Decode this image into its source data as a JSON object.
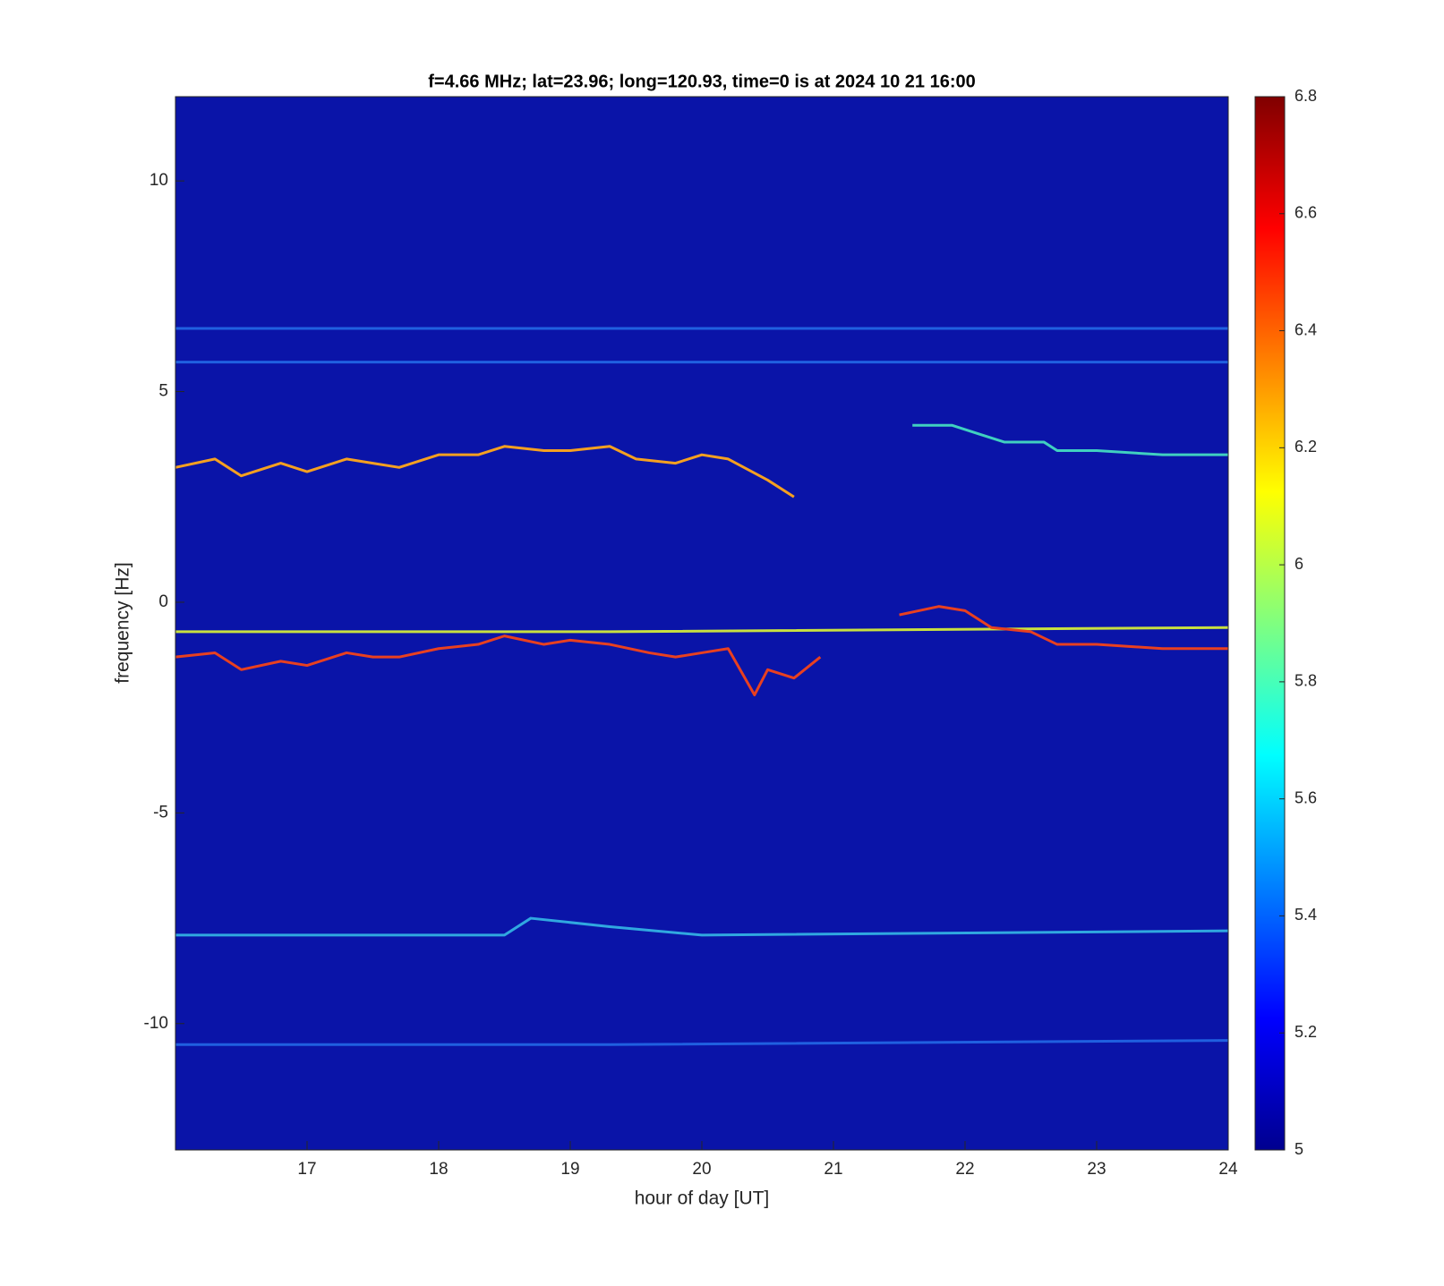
{
  "chart_data": {
    "type": "spectrogram",
    "title": "f=4.66 MHz;  lat=23.96; long=120.93, time=0 is at 2024 10 21 16:00",
    "x_label": "hour of day [UT]",
    "y_label": "frequency [Hz]",
    "xlim": [
      16,
      24
    ],
    "xticks": [
      17,
      18,
      19,
      20,
      21,
      22,
      23,
      24
    ],
    "ylim": [
      -13,
      12
    ],
    "yticks": [
      -10,
      -5,
      0,
      5,
      10
    ],
    "clim": [
      5,
      6.8
    ],
    "cticks": [
      5,
      5.2,
      5.4,
      5.6,
      5.8,
      6,
      6.2,
      6.4,
      6.6,
      6.8
    ],
    "traces": [
      {
        "color": "#f5a020",
        "x": [
          16.0,
          16.3,
          16.5,
          16.8,
          17.0,
          17.3,
          17.5,
          17.7,
          18.0,
          18.3,
          18.5,
          18.8,
          19.0,
          19.3,
          19.5,
          19.8,
          20.0,
          20.2,
          20.5,
          20.7
        ],
        "y": [
          3.2,
          3.4,
          3.0,
          3.3,
          3.1,
          3.4,
          3.3,
          3.2,
          3.5,
          3.5,
          3.7,
          3.6,
          3.6,
          3.7,
          3.4,
          3.3,
          3.5,
          3.4,
          2.9,
          2.5
        ]
      },
      {
        "color": "#e84020",
        "x": [
          16.0,
          16.3,
          16.5,
          16.8,
          17.0,
          17.3,
          17.5,
          17.7,
          18.0,
          18.3,
          18.5,
          18.8,
          19.0,
          19.3,
          19.6,
          19.8,
          20.0,
          20.2,
          20.4,
          20.5,
          20.7,
          20.9
        ],
        "y": [
          -1.3,
          -1.2,
          -1.6,
          -1.4,
          -1.5,
          -1.2,
          -1.3,
          -1.3,
          -1.1,
          -1.0,
          -0.8,
          -1.0,
          -0.9,
          -1.0,
          -1.2,
          -1.3,
          -1.2,
          -1.1,
          -2.2,
          -1.6,
          -1.8,
          -1.3
        ]
      },
      {
        "color": "#c8e040",
        "x": [
          16.0,
          19.3,
          24.0
        ],
        "y": [
          -0.7,
          -0.7,
          -0.6
        ]
      },
      {
        "color": "#e84020",
        "x": [
          21.5,
          21.8,
          22.0,
          22.2,
          22.5,
          22.7,
          23.0,
          23.5,
          24.0
        ],
        "y": [
          -0.3,
          -0.1,
          -0.2,
          -0.6,
          -0.7,
          -1.0,
          -1.0,
          -1.1,
          -1.1
        ]
      },
      {
        "color": "#40d0c0",
        "x": [
          21.6,
          21.9,
          22.1,
          22.3,
          22.6,
          22.7,
          23.0,
          23.5,
          24.0
        ],
        "y": [
          4.2,
          4.2,
          4.0,
          3.8,
          3.8,
          3.6,
          3.6,
          3.5,
          3.5
        ]
      },
      {
        "color": "#30a8e0",
        "x": [
          16.0,
          18.5,
          18.7,
          19.3,
          20.0,
          24.0
        ],
        "y": [
          -7.9,
          -7.9,
          -7.5,
          -7.7,
          -7.9,
          -7.8
        ]
      },
      {
        "color": "#2060e0",
        "x": [
          16.0,
          18.5,
          19.3,
          24.0
        ],
        "y": [
          6.5,
          6.5,
          6.5,
          6.5
        ]
      },
      {
        "color": "#2060e0",
        "x": [
          16.0,
          18.5,
          19.3,
          24.0
        ],
        "y": [
          5.7,
          5.7,
          5.7,
          5.7
        ]
      },
      {
        "color": "#2060e0",
        "x": [
          16.0,
          18.5,
          19.3,
          24.0
        ],
        "y": [
          -10.5,
          -10.5,
          -10.5,
          -10.4
        ]
      }
    ]
  }
}
